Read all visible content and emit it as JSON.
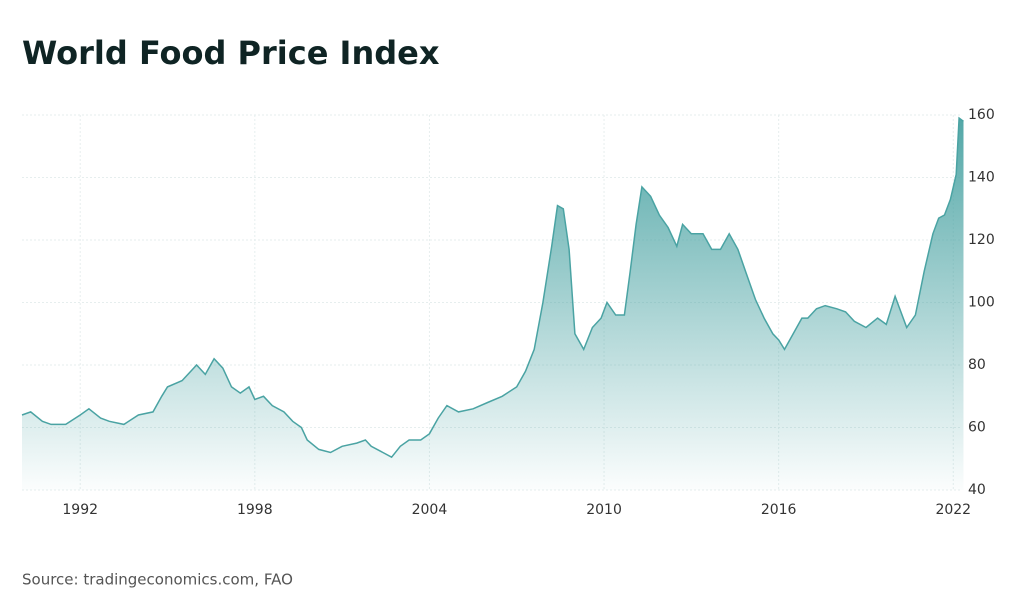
{
  "chart_data": {
    "type": "area",
    "title": "World Food Price Index",
    "source": "Source: tradingeconomics.com, FAO",
    "color": "#4aa3a3",
    "x": [
      1990.0,
      1990.3,
      1990.7,
      1991.0,
      1991.5,
      1992.0,
      1992.3,
      1992.7,
      1993.0,
      1993.5,
      1994.0,
      1994.5,
      1994.8,
      1995.0,
      1995.5,
      1995.8,
      1996.0,
      1996.3,
      1996.6,
      1996.9,
      1997.2,
      1997.5,
      1997.8,
      1998.0,
      1998.3,
      1998.6,
      1999.0,
      1999.3,
      1999.6,
      1999.8,
      2000.2,
      2000.6,
      2001.0,
      2001.5,
      2001.8,
      2002.0,
      2002.4,
      2002.7,
      2003.0,
      2003.3,
      2003.7,
      2004.0,
      2004.3,
      2004.6,
      2005.0,
      2005.5,
      2006.0,
      2006.5,
      2007.0,
      2007.3,
      2007.6,
      2007.9,
      2008.2,
      2008.4,
      2008.6,
      2008.8,
      2009.0,
      2009.3,
      2009.6,
      2009.9,
      2010.1,
      2010.4,
      2010.7,
      2010.9,
      2011.1,
      2011.3,
      2011.6,
      2011.9,
      2012.2,
      2012.5,
      2012.7,
      2013.0,
      2013.4,
      2013.7,
      2014.0,
      2014.3,
      2014.6,
      2014.9,
      2015.2,
      2015.5,
      2015.8,
      2016.0,
      2016.2,
      2016.5,
      2016.8,
      2017.0,
      2017.3,
      2017.6,
      2018.0,
      2018.3,
      2018.6,
      2019.0,
      2019.4,
      2019.7,
      2020.0,
      2020.4,
      2020.7,
      2021.0,
      2021.3,
      2021.5,
      2021.7,
      2021.9,
      2022.1,
      2022.2,
      2022.35
    ],
    "values": [
      64,
      65,
      62,
      61,
      61,
      64,
      66,
      63,
      62,
      61,
      64,
      65,
      70,
      73,
      75,
      78,
      80,
      77,
      82,
      79,
      73,
      71,
      73,
      69,
      70,
      67,
      65,
      62,
      60,
      56,
      53,
      52,
      54,
      55,
      56,
      54,
      52,
      50.5,
      54,
      56,
      56,
      58,
      63,
      67,
      65,
      66,
      68,
      70,
      73,
      78,
      85,
      100,
      118,
      131,
      130,
      117,
      90,
      85,
      92,
      95,
      100,
      96,
      96,
      110,
      125,
      137,
      134,
      128,
      124,
      118,
      125,
      122,
      122,
      117,
      117,
      122,
      117,
      109,
      101,
      95,
      90,
      88,
      85,
      90,
      95,
      95,
      98,
      99,
      98,
      97,
      94,
      92,
      95,
      93,
      102,
      92,
      96,
      110,
      122,
      127,
      128,
      133,
      141,
      159,
      158
    ],
    "xlim": [
      1990,
      2022.3
    ],
    "xticks": [
      1992,
      1998,
      2004,
      2010,
      2016,
      2022
    ],
    "ylim": [
      40,
      160
    ],
    "yticks": [
      40,
      60,
      80,
      100,
      120,
      140,
      160
    ],
    "grid": true
  }
}
